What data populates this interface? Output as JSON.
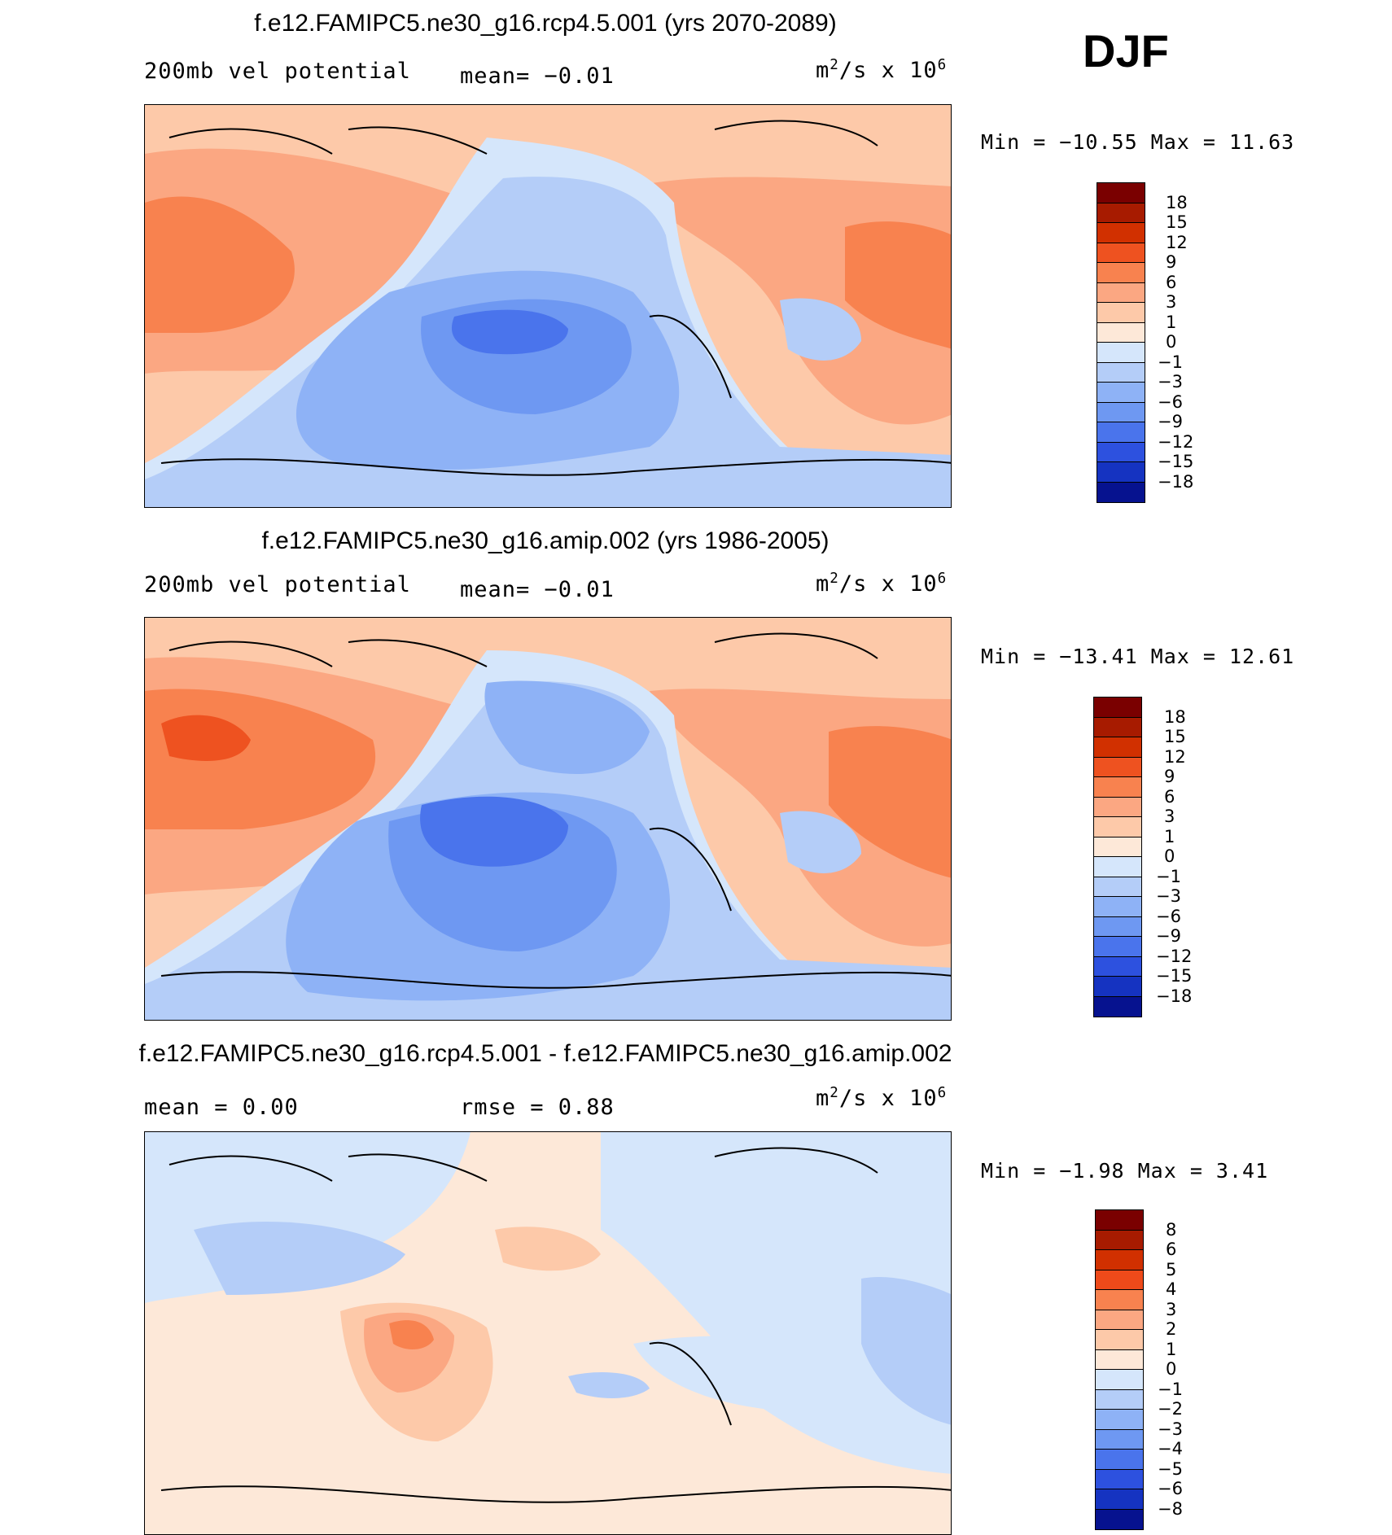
{
  "season": "DJF",
  "palettes": {
    "full": [
      "#7a0000",
      "#a71b00",
      "#d13000",
      "#ee5220",
      "#f8824f",
      "#fba782",
      "#fdc9a9",
      "#fde8d8",
      "#d5e6fb",
      "#b4cdf8",
      "#8eb2f6",
      "#6e98f2",
      "#4a74ec",
      "#2d51df",
      "#1533c1",
      "#06128f"
    ],
    "diff": [
      "#7a0000",
      "#a71b00",
      "#d13000",
      "#ee4a1a",
      "#f8824f",
      "#fba782",
      "#fdc9a9",
      "#fde8d8",
      "#d5e6fb",
      "#b4cdf8",
      "#8eb2f6",
      "#6e98f2",
      "#4a74ec",
      "#2d51df",
      "#1533c1",
      "#06128f"
    ]
  },
  "panels": [
    {
      "title": "f.e12.FAMIPC5.ne30_g16.rcp4.5.001 (yrs 2070-2089)",
      "left_label": "200mb vel potential",
      "center_label": "mean=   −0.01",
      "units_text": "m²/s x 10⁶",
      "units_base": "m",
      "units_rest": "/s x 10",
      "units_sup1": "2",
      "units_sup2": "6",
      "minmax": "Min = −10.55 Max =  11.63",
      "levels": [
        "18",
        "15",
        "12",
        "9",
        "6",
        "3",
        "1",
        "0",
        "−1",
        "−3",
        "−6",
        "−9",
        "−12",
        "−15",
        "−18"
      ],
      "palette": "full"
    },
    {
      "title": "f.e12.FAMIPC5.ne30_g16.amip.002 (yrs 1986-2005)",
      "left_label": "200mb vel potential",
      "center_label": "mean=   −0.01",
      "units_text": "m²/s x 10⁶",
      "units_base": "m",
      "units_rest": "/s x 10",
      "units_sup1": "2",
      "units_sup2": "6",
      "minmax": "Min = −13.41 Max =  12.61",
      "levels": [
        "18",
        "15",
        "12",
        "9",
        "6",
        "3",
        "1",
        "0",
        "−1",
        "−3",
        "−6",
        "−9",
        "−12",
        "−15",
        "−18"
      ],
      "palette": "full"
    },
    {
      "title": "f.e12.FAMIPC5.ne30_g16.rcp4.5.001 - f.e12.FAMIPC5.ne30_g16.amip.002",
      "left_label": "mean =    0.00",
      "center_label": "rmse =    0.88",
      "units_text": "m²/s x 10⁶",
      "units_base": "m",
      "units_rest": "/s x 10",
      "units_sup1": "2",
      "units_sup2": "6",
      "minmax": "Min =  −1.98 Max =   3.41",
      "levels": [
        "8",
        "6",
        "5",
        "4",
        "3",
        "2",
        "1",
        "0",
        "−1",
        "−2",
        "−3",
        "−4",
        "−5",
        "−6",
        "−8"
      ],
      "palette": "diff"
    }
  ]
}
